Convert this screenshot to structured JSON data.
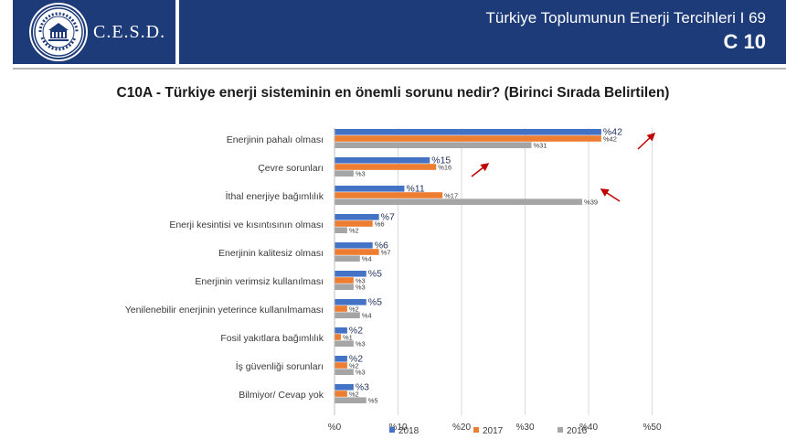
{
  "header": {
    "logo_text": "C.E.S.D.",
    "title": "Türkiye Toplumunun Enerji Tercihleri  I 69",
    "code": "C 10"
  },
  "question": "C10A - Türkiye enerji sisteminin en önemli sorunu nedir? (Birinci Sırada Belirtilen)",
  "colors": {
    "header_bg": "#1d3b78",
    "s2018": "#4472c4",
    "s2017": "#ed7d31",
    "s2016": "#a5a5a5",
    "arrow": "#c00000"
  },
  "chart_data": {
    "type": "bar",
    "orientation": "horizontal",
    "categories": [
      "Enerjinin pahalı olması",
      "Çevre sorunları",
      "İthal enerjiye bağımlılık",
      "Enerji kesintisi ve kısıntısının olması",
      "Enerjinin kalitesiz olması",
      "Enerjinin verimsiz kullanılması",
      "Yenilenebilir enerjinin yeterince kullanılmaması",
      "Fosil yakıtlara bağımlılık",
      "İş güvenliği sorunları",
      "Bilmiyor/ Cevap yok"
    ],
    "series": [
      {
        "name": "2018",
        "values": [
          42,
          15,
          11,
          7,
          6,
          5,
          5,
          2,
          2,
          3
        ]
      },
      {
        "name": "2017",
        "values": [
          42,
          16,
          17,
          6,
          7,
          3,
          2,
          1,
          2,
          2
        ]
      },
      {
        "name": "2016",
        "values": [
          31,
          3,
          39,
          2,
          4,
          3,
          4,
          3,
          3,
          5
        ]
      }
    ],
    "value_prefix": "%",
    "xlim": [
      0,
      50
    ],
    "xticks": [
      "%0",
      "%10",
      "%20",
      "%30",
      "%40",
      "%50"
    ],
    "grid": true,
    "legend": "bottom",
    "annotations": [
      {
        "type": "arrow",
        "direction": "up",
        "category": "Enerjinin pahalı olması"
      },
      {
        "type": "arrow",
        "direction": "up",
        "category": "Çevre sorunları"
      },
      {
        "type": "arrow",
        "direction": "up",
        "category": "İthal enerjiye bağımlılık"
      }
    ]
  }
}
